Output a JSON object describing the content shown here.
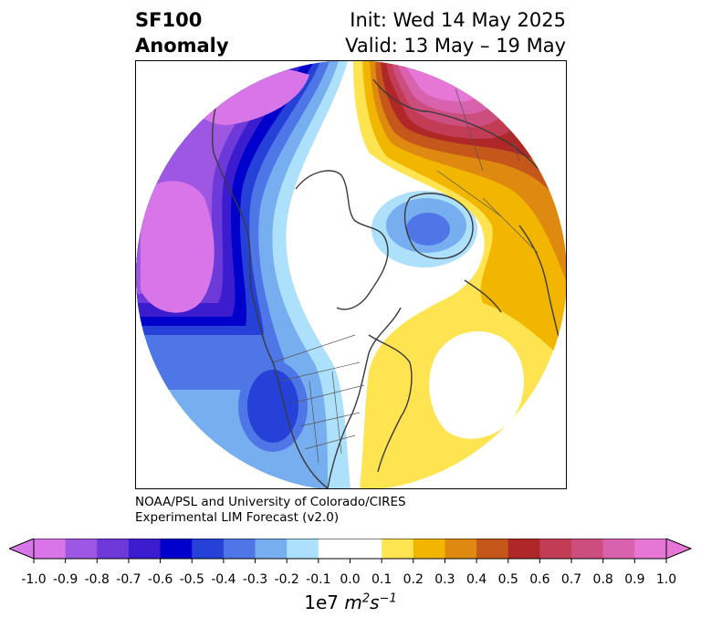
{
  "title": {
    "line1": "SF100",
    "line2": "Anomaly",
    "init": "Init: Wed 14 May 2025",
    "valid": "Valid: 13 May – 19 May"
  },
  "credit": {
    "line1": "NOAA/PSL and University of Colorado/CIRES",
    "line2": "Experimental LIM Forecast (v2.0)"
  },
  "colorbar": {
    "ticks": [
      "-1.0",
      "-0.9",
      "-0.8",
      "-0.7",
      "-0.6",
      "-0.5",
      "-0.4",
      "-0.3",
      "-0.2",
      "-0.1",
      "0.0",
      "0.1",
      "0.2",
      "0.3",
      "0.4",
      "0.5",
      "0.6",
      "0.7",
      "0.8",
      "0.9",
      "1.0"
    ],
    "colors": [
      "#d875e8",
      "#9d57e3",
      "#6d3ad9",
      "#3c1ccf",
      "#0000cc",
      "#2541d8",
      "#4f76e6",
      "#77aef0",
      "#ade0fa",
      "#ffffff",
      "#ffffff",
      "#fee451",
      "#f2b600",
      "#de8a10",
      "#c5571a",
      "#b02727",
      "#c23c55",
      "#cc4e7e",
      "#d862ad",
      "#e677d6"
    ],
    "under_color": "#d875e8",
    "over_color": "#e677d6",
    "units_prefix": "1e7 ",
    "units_m": "m",
    "units_m_exp": "2",
    "units_s": "s",
    "units_s_exp": "−1"
  }
}
